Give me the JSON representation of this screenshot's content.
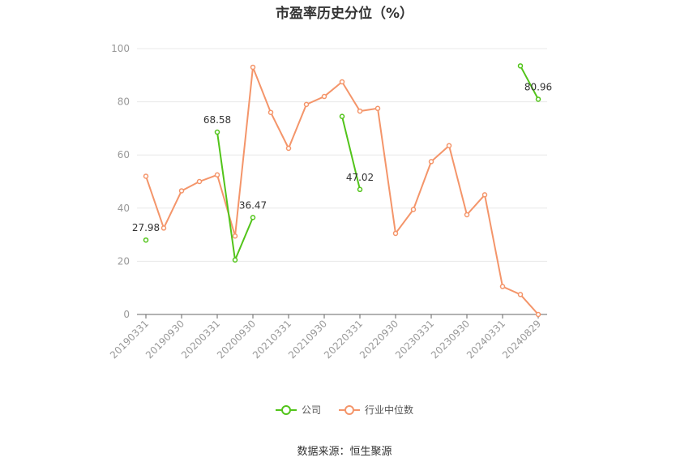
{
  "chart_data": {
    "type": "line",
    "title": "市盈率历史分位（%）",
    "ylim": [
      0,
      100
    ],
    "yticks": [
      "0",
      "20",
      "40",
      "60",
      "80",
      "100"
    ],
    "x": [
      "20190331",
      "20190630",
      "20190930",
      "20191231",
      "20200331",
      "20200630",
      "20200930",
      "20201231",
      "20210331",
      "20210630",
      "20210930",
      "20211231",
      "20220331",
      "20220630",
      "20220930",
      "20221231",
      "20230331",
      "20230630",
      "20230930",
      "20231231",
      "20240331",
      "20240630",
      "20240829"
    ],
    "x_tick_labels": [
      "20190331",
      "20190930",
      "20200331",
      "20200930",
      "20210331",
      "20210930",
      "20220331",
      "20220930",
      "20230331",
      "20230930",
      "20240331",
      "20240829"
    ],
    "series": [
      {
        "name": "公司",
        "color": "#52c41a",
        "values": [
          27.98,
          null,
          null,
          null,
          68.58,
          20.5,
          36.47,
          null,
          null,
          null,
          null,
          74.5,
          47.02,
          null,
          null,
          null,
          null,
          null,
          null,
          null,
          null,
          93.5,
          80.96
        ],
        "labels": {
          "0": "27.98",
          "4": "68.58",
          "6": "36.47",
          "12": "47.02",
          "22": "80.96"
        }
      },
      {
        "name": "行业中位数",
        "color": "#f4956a",
        "values": [
          52,
          32.5,
          46.5,
          50,
          52.5,
          29.5,
          93,
          76,
          62.5,
          79,
          82,
          87.5,
          76.5,
          77.5,
          30.5,
          39.5,
          57.5,
          63.5,
          37.5,
          45,
          10.5,
          7.5,
          0
        ]
      }
    ]
  },
  "legend": {
    "company": "公司",
    "industry": "行业中位数"
  },
  "source": "数据来源：恒生聚源"
}
